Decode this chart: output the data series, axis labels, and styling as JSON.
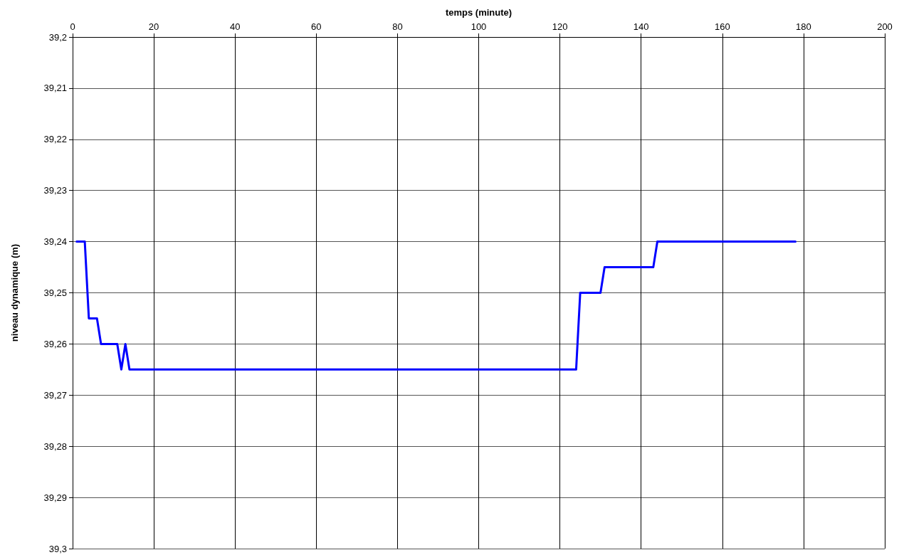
{
  "chart_data": {
    "type": "line",
    "xlabel": "temps (minute)",
    "ylabel": "niveau dynamique (m)",
    "x": [
      1,
      3,
      4,
      6,
      7,
      11,
      12,
      13,
      14,
      123,
      124,
      125,
      130,
      131,
      143,
      144,
      178
    ],
    "series": [
      {
        "color": "#0000ff",
        "values": [
          39.24,
          39.24,
          39.255,
          39.255,
          39.26,
          39.26,
          39.265,
          39.26,
          39.265,
          39.265,
          39.265,
          39.25,
          39.25,
          39.245,
          39.245,
          39.24,
          39.24
        ]
      }
    ],
    "xlim": [
      0,
      200
    ],
    "xticks": [
      0,
      20,
      40,
      60,
      80,
      100,
      120,
      140,
      160,
      180,
      200
    ],
    "ylim": [
      39.3,
      39.2
    ],
    "yticks": [
      {
        "value": 39.2,
        "label": "39,2"
      },
      {
        "value": 39.21,
        "label": "39,21"
      },
      {
        "value": 39.22,
        "label": "39,22"
      },
      {
        "value": 39.23,
        "label": "39,23"
      },
      {
        "value": 39.24,
        "label": "39,24"
      },
      {
        "value": 39.25,
        "label": "39,25"
      },
      {
        "value": 39.26,
        "label": "39,26"
      },
      {
        "value": 39.27,
        "label": "39,27"
      },
      {
        "value": 39.28,
        "label": "39,28"
      },
      {
        "value": 39.29,
        "label": "39,29"
      },
      {
        "value": 39.3,
        "label": "39,3"
      }
    ],
    "grid": true,
    "marker": "none",
    "line_style": "solid"
  }
}
